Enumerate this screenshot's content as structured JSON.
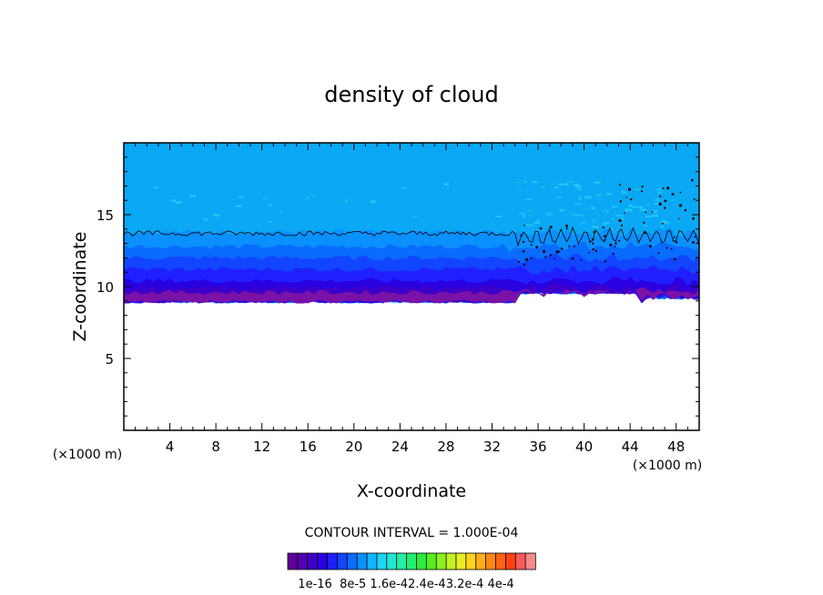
{
  "chart_data": {
    "type": "heatmap",
    "title": "density of cloud",
    "xlabel": "X-coordinate",
    "ylabel": "Z-coordinate",
    "x_unit": "(×1000 m)",
    "x_unit_right": "(×1000 m)",
    "xlim": [
      0,
      50
    ],
    "ylim": [
      0,
      20
    ],
    "x_ticks": [
      4,
      8,
      12,
      16,
      20,
      24,
      28,
      32,
      36,
      40,
      44,
      48
    ],
    "y_ticks": [
      5,
      10,
      15
    ],
    "contour_interval_text": "CONTOUR INTERVAL = 1.000E-04",
    "colorbar": {
      "tick_labels": [
        "1e-16",
        "8e-5",
        "1.6e-4",
        "2.4e-4",
        "3.2e-4",
        "4e-4"
      ],
      "label_text": "1e-16  8e-5 1.6e-42.4e-43.2e-4 4e-4",
      "colors": [
        "#5f009a",
        "#5000b0",
        "#3d00c8",
        "#2a00e0",
        "#1f1fff",
        "#1245ff",
        "#0a6bff",
        "#0a90ff",
        "#11b4ff",
        "#1dd3f6",
        "#22e6d0",
        "#24eda4",
        "#22ee72",
        "#2ceb3e",
        "#57ed1e",
        "#8ef01c",
        "#c3f020",
        "#e9ed22",
        "#ffd21c",
        "#ffae18",
        "#ff8814",
        "#ff6412",
        "#ff4216",
        "#ff5a5a",
        "#f58a8a"
      ]
    },
    "cloud_layer": {
      "base_z": 9.2,
      "top_z": 20,
      "contour_z": 13.7,
      "bands": [
        {
          "z_top": 20.0,
          "level": "light"
        },
        {
          "z_top": 13.8,
          "level": "mid1"
        },
        {
          "z_top": 12.8,
          "level": "mid2"
        },
        {
          "z_top": 12.0,
          "level": "mid3"
        },
        {
          "z_top": 11.2,
          "level": "mid4"
        },
        {
          "z_top": 10.4,
          "level": "dark1"
        },
        {
          "z_top": 9.9,
          "level": "dark2"
        },
        {
          "z_top": 9.6,
          "level": "base"
        }
      ]
    },
    "grid": false,
    "legend": "bottom"
  },
  "colors": {
    "band_light": "#0aa8f5",
    "band_mid1": "#0a90ff",
    "band_mid2": "#0a6bff",
    "band_mid3": "#1245ff",
    "band_mid4": "#1f1fff",
    "band_dark1": "#2a00e0",
    "band_dark2": "#3d00c8",
    "band_base": "#7a12a8",
    "speckle": "#22c8f0"
  }
}
